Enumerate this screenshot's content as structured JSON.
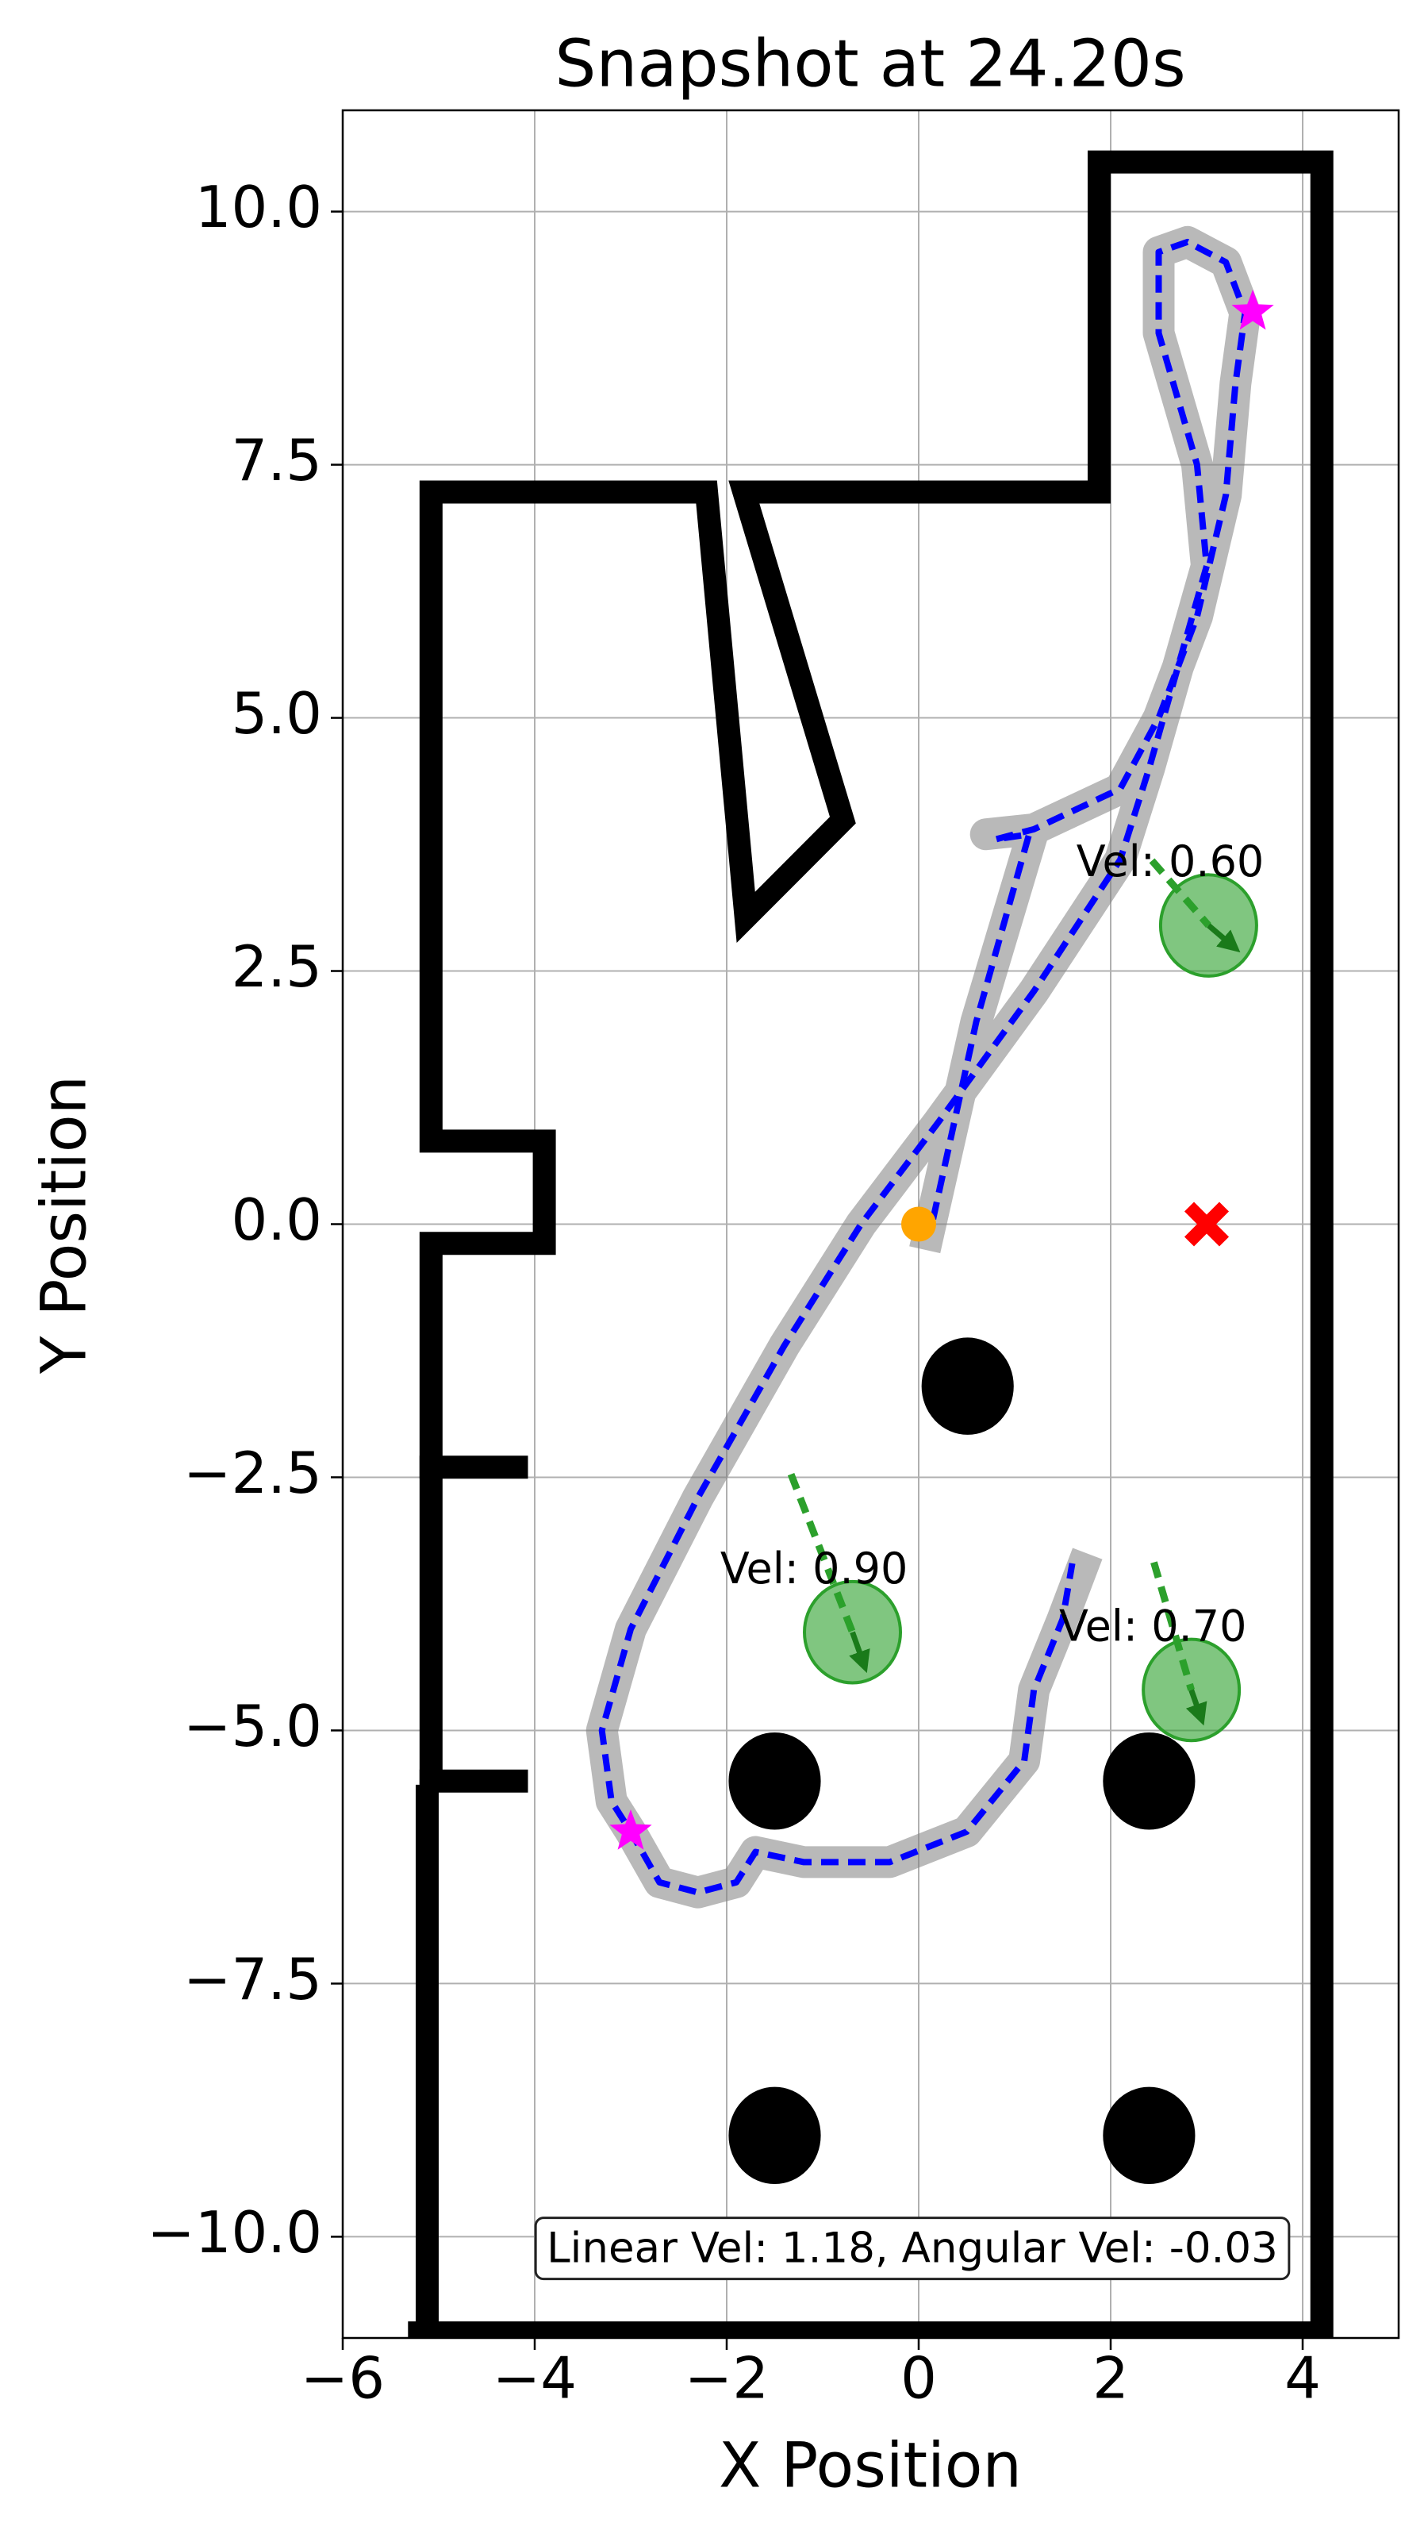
{
  "chart_data": {
    "type": "scatter",
    "title": "Snapshot at 24.20s",
    "xlabel": "X Position",
    "ylabel": "Y Position",
    "xlim": [
      -6,
      5
    ],
    "ylim": [
      -11,
      11
    ],
    "xticks": [
      {
        "value": -6,
        "label": "−6"
      },
      {
        "value": -4,
        "label": "−4"
      },
      {
        "value": -2,
        "label": "−2"
      },
      0,
      2,
      4
    ],
    "yticks": [
      {
        "value": 10,
        "label": "10.0"
      },
      7.5,
      {
        "value": 5,
        "label": "5.0"
      },
      2.5,
      {
        "value": 0,
        "label": "0.0"
      },
      {
        "value": -2.5,
        "label": "−2.5"
      },
      {
        "value": -5,
        "label": "−5.0"
      },
      {
        "value": -7.5,
        "label": "−7.5"
      },
      {
        "value": -10,
        "label": "−10.0"
      }
    ],
    "grid": true,
    "walls": {
      "color": "#000000",
      "lines": [
        {
          "x": [
            -5.12,
            -5.12
          ],
          "y": [
            -11.2,
            -5.65
          ]
        },
        {
          "x": [
            -5.2,
            4.2,
            4.2,
            1.88,
            1.88,
            -1.82,
            -0.79,
            -1.8,
            -2.21,
            -5.08,
            -5.08,
            -3.9,
            -3.9,
            -5.08,
            -5.08
          ],
          "y": [
            -10.95,
            -10.95,
            10.49,
            10.49,
            7.23,
            7.23,
            3.99,
            3.03,
            7.23,
            7.23,
            0.82,
            0.82,
            -0.19,
            -0.19,
            -5.42
          ]
        },
        {
          "x": [
            -5.08,
            -4.19
          ],
          "y": [
            -2.4,
            -2.4
          ]
        },
        {
          "x": [
            -5.08,
            -4.19
          ],
          "y": [
            -5.5,
            -5.5
          ]
        }
      ]
    },
    "history": {
      "color": "#808080",
      "x": [
        0.1,
        0.6,
        1.2,
        0.7,
        1.2,
        2.1,
        2.5,
        2.9,
        3.2,
        3.3,
        3.4,
        3.2,
        2.8,
        2.5,
        2.5,
        2.9,
        3.0,
        2.7,
        2.4,
        2.1,
        1.2,
        0.2,
        -0.6,
        -1.4,
        -2.3,
        -3.0,
        -3.3,
        -3.2,
        -3.0,
        -2.7,
        -2.3,
        -1.9,
        -1.7,
        -1.2,
        -0.3,
        0.5,
        1.1,
        1.2,
        1.5,
        1.7
      ],
      "y": [
        -0.1,
        2.0,
        3.9,
        3.85,
        3.9,
        4.3,
        5.0,
        6.0,
        7.2,
        8.3,
        9.0,
        9.5,
        9.7,
        9.6,
        8.8,
        7.5,
        6.5,
        5.5,
        4.5,
        3.6,
        2.3,
        1.0,
        0.0,
        -1.2,
        -2.7,
        -4.0,
        -5.0,
        -5.7,
        -6.0,
        -6.5,
        -6.6,
        -6.5,
        -6.2,
        -6.3,
        -6.3,
        -6.0,
        -5.3,
        -4.6,
        -3.9,
        -3.4
      ]
    },
    "trajectory": {
      "color": "#0000ff",
      "x": [
        0.15,
        0.6,
        1.15,
        0.8,
        1.2,
        2.1,
        2.5,
        2.9,
        3.2,
        3.3,
        3.4,
        3.2,
        2.8,
        2.5,
        2.5,
        2.9,
        3.0,
        2.7,
        2.4,
        2.1,
        1.2,
        0.2,
        -0.6,
        -1.4,
        -2.3,
        -3.0,
        -3.3,
        -3.2,
        -3.0,
        -2.7,
        -2.3,
        -1.9,
        -1.7,
        -1.2,
        -0.3,
        0.5,
        1.1,
        1.2,
        1.5,
        1.6
      ],
      "y": [
        0.05,
        2.0,
        3.85,
        3.8,
        3.9,
        4.3,
        5.0,
        6.0,
        7.2,
        8.3,
        9.0,
        9.5,
        9.7,
        9.6,
        8.8,
        7.5,
        6.5,
        5.5,
        4.5,
        3.6,
        2.3,
        1.0,
        0.0,
        -1.2,
        -2.7,
        -4.0,
        -5.0,
        -5.7,
        -6.0,
        -6.5,
        -6.6,
        -6.5,
        -6.2,
        -6.3,
        -6.3,
        -6.0,
        -5.3,
        -4.6,
        -3.9,
        -3.35
      ]
    },
    "obstacles": {
      "color": "#000000",
      "radius": 0.48,
      "x": [
        0.51,
        -1.5,
        2.4,
        -1.5,
        2.4
      ],
      "y": [
        -1.6,
        -5.5,
        -5.5,
        -9.0,
        -9.0
      ]
    },
    "pedestrians": {
      "color": "#2ca02c",
      "radius": 0.5,
      "x": [
        3.02,
        -0.69,
        2.84
      ],
      "y": [
        2.95,
        -4.03,
        -4.6
      ],
      "trail_x": [
        2.43,
        -1.33,
        2.45
      ],
      "trail_y": [
        3.59,
        -2.47,
        -3.34
      ],
      "arrow_x": [
        3.28,
        -0.57,
        2.94
      ],
      "arrow_y": [
        2.74,
        -4.35,
        -4.87
      ],
      "values": [
        0.6,
        0.9,
        0.7
      ],
      "value_labels": [
        "Vel: 0.60",
        "Vel: 0.90",
        "Vel: 0.70"
      ]
    },
    "waypoints": {
      "color": "#ff00ff",
      "x": [
        3.48,
        -3.0
      ],
      "y": [
        9.01,
        -6.0
      ]
    },
    "goal": {
      "color": "#ff0000",
      "x": 3.0,
      "y": 0.0
    },
    "robot": {
      "color": "#ffa500",
      "x": 0.0,
      "y": 0.0
    },
    "annotation": "Linear Vel: 1.18, Angular Vel: -0.03"
  }
}
